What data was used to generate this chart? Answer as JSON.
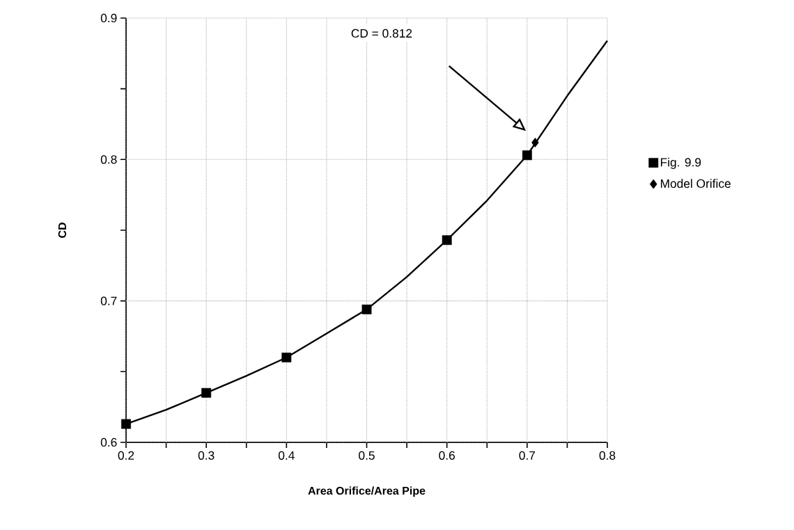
{
  "chart_data": {
    "type": "scatter",
    "xlabel": "Area Orifice/Area Pipe",
    "ylabel": "CD",
    "xlim": [
      0.2,
      0.8
    ],
    "ylim": [
      0.6,
      0.9
    ],
    "xticks": [
      0.2,
      {
        "value": 0.25,
        "label": null
      },
      0.3,
      {
        "value": 0.35,
        "label": null
      },
      0.4,
      {
        "value": 0.45,
        "label": null
      },
      0.5,
      {
        "value": 0.55,
        "label": null
      },
      0.6,
      {
        "value": 0.65,
        "label": null
      },
      0.7,
      {
        "value": 0.75,
        "label": null
      },
      0.8
    ],
    "yticks": [
      0.6,
      {
        "value": 0.65,
        "label": null
      },
      0.7,
      {
        "value": 0.75,
        "label": null
      },
      0.8,
      {
        "value": 0.85,
        "label": null
      },
      0.9
    ],
    "grid": true,
    "legend": "right",
    "series": [
      {
        "type": "line",
        "color": "#000000",
        "marker": "none",
        "x": [
          0.2,
          0.25,
          0.3,
          0.35,
          0.4,
          0.45,
          0.5,
          0.55,
          0.6,
          0.65,
          0.7,
          0.75,
          0.8
        ],
        "values": [
          0.613,
          0.623,
          0.635,
          0.647,
          0.66,
          0.677,
          0.694,
          0.717,
          0.743,
          0.771,
          0.803,
          0.845,
          0.884
        ]
      },
      {
        "name": "Fig. 9.9",
        "color": "#000000",
        "marker": "square",
        "x": [
          0.2,
          0.3,
          0.4,
          0.5,
          0.6,
          0.7
        ],
        "values": [
          0.613,
          0.635,
          0.66,
          0.694,
          0.743,
          0.803
        ]
      },
      {
        "name": "Model Orifice",
        "color": "#000000",
        "marker": "diamond",
        "x": [
          0.71
        ],
        "values": [
          0.812
        ]
      }
    ],
    "annotations": [
      "CD = 0.812"
    ]
  }
}
